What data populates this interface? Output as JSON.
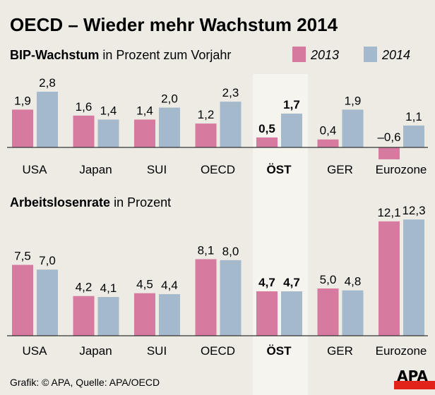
{
  "title": "OECD – Wieder mehr Wachstum 2014",
  "footer": "Grafik: © APA, Quelle: APA/OECD",
  "logo": "APA",
  "colors": {
    "2013": "#d67b9f",
    "2014": "#a4b9cc",
    "highlight": "#f5f4ef",
    "background": "#edebe4",
    "logo_red": "#e2231a"
  },
  "legend": [
    "2013",
    "2014"
  ],
  "highlight_category": "ÖST",
  "chart_data": [
    {
      "type": "bar",
      "title_bold": "BIP-Wachstum",
      "title_rest": " in Prozent zum Vorjahr",
      "categories": [
        "USA",
        "Japan",
        "SUI",
        "OECD",
        "ÖST",
        "GER",
        "Eurozone"
      ],
      "series": [
        {
          "name": "2013",
          "values": [
            1.9,
            1.6,
            1.4,
            1.2,
            0.5,
            0.4,
            -0.6
          ],
          "labels": [
            "1,9",
            "1,6",
            "1,4",
            "1,2",
            "0,5",
            "0,4",
            "–0,6"
          ]
        },
        {
          "name": "2014",
          "values": [
            2.8,
            1.4,
            2.0,
            2.3,
            1.7,
            1.9,
            1.1
          ],
          "labels": [
            "2,8",
            "1,4",
            "2,0",
            "2,3",
            "1,7",
            "1,9",
            "1,1"
          ]
        }
      ]
    },
    {
      "type": "bar",
      "title_bold": "Arbeitslosenrate",
      "title_rest": " in Prozent",
      "categories": [
        "USA",
        "Japan",
        "SUI",
        "OECD",
        "ÖST",
        "GER",
        "Eurozone"
      ],
      "series": [
        {
          "name": "2013",
          "values": [
            7.5,
            4.2,
            4.5,
            8.1,
            4.7,
            5.0,
            12.1
          ],
          "labels": [
            "7,5",
            "4,2",
            "4,5",
            "8,1",
            "4,7",
            "5,0",
            "12,1"
          ]
        },
        {
          "name": "2014",
          "values": [
            7.0,
            4.1,
            4.4,
            8.0,
            4.7,
            4.8,
            12.3
          ],
          "labels": [
            "7,0",
            "4,1",
            "4,4",
            "8,0",
            "4,7",
            "4,8",
            "12,3"
          ]
        }
      ]
    }
  ]
}
